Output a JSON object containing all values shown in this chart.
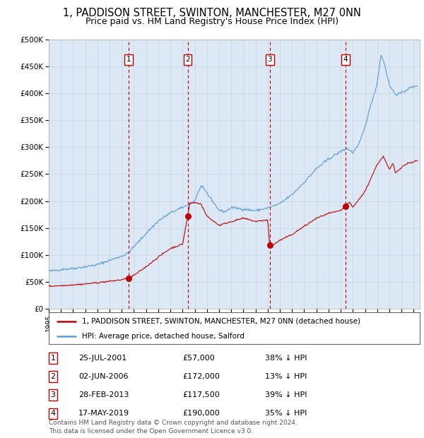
{
  "title": "1, PADDISON STREET, SWINTON, MANCHESTER, M27 0NN",
  "subtitle": "Price paid vs. HM Land Registry's House Price Index (HPI)",
  "title_fontsize": 10.5,
  "subtitle_fontsize": 9,
  "background_color": "#ffffff",
  "plot_bg_color": "#dce9f5",
  "grid_color": "#c8d8e8",
  "hpi_color": "#5b9bd5",
  "price_color": "#c00000",
  "dashed_line_color": "#c00000",
  "ylim": [
    0,
    500000
  ],
  "yticks": [
    0,
    50000,
    100000,
    150000,
    200000,
    250000,
    300000,
    350000,
    400000,
    450000,
    500000
  ],
  "ytick_labels": [
    "£0",
    "£50K",
    "£100K",
    "£150K",
    "£200K",
    "£250K",
    "£300K",
    "£350K",
    "£400K",
    "£450K",
    "£500K"
  ],
  "purchase_dates": [
    2001.57,
    2006.42,
    2013.16,
    2019.38
  ],
  "purchase_prices": [
    57000,
    172000,
    117500,
    190000
  ],
  "vline_labels": [
    "1",
    "2",
    "3",
    "4"
  ],
  "legend_label_price": "1, PADDISON STREET, SWINTON, MANCHESTER, M27 0NN (detached house)",
  "legend_label_hpi": "HPI: Average price, detached house, Salford",
  "table_entries": [
    {
      "num": "1",
      "date": "25-JUL-2001",
      "price": "£57,000",
      "note": "38% ↓ HPI"
    },
    {
      "num": "2",
      "date": "02-JUN-2006",
      "price": "£172,000",
      "note": "13% ↓ HPI"
    },
    {
      "num": "3",
      "date": "28-FEB-2013",
      "price": "£117,500",
      "note": "39% ↓ HPI"
    },
    {
      "num": "4",
      "date": "17-MAY-2019",
      "price": "£190,000",
      "note": "35% ↓ HPI"
    }
  ],
  "footer_text": "Contains HM Land Registry data © Crown copyright and database right 2024.\nThis data is licensed under the Open Government Licence v3.0.",
  "xmin": 1995,
  "xmax": 2025.5
}
